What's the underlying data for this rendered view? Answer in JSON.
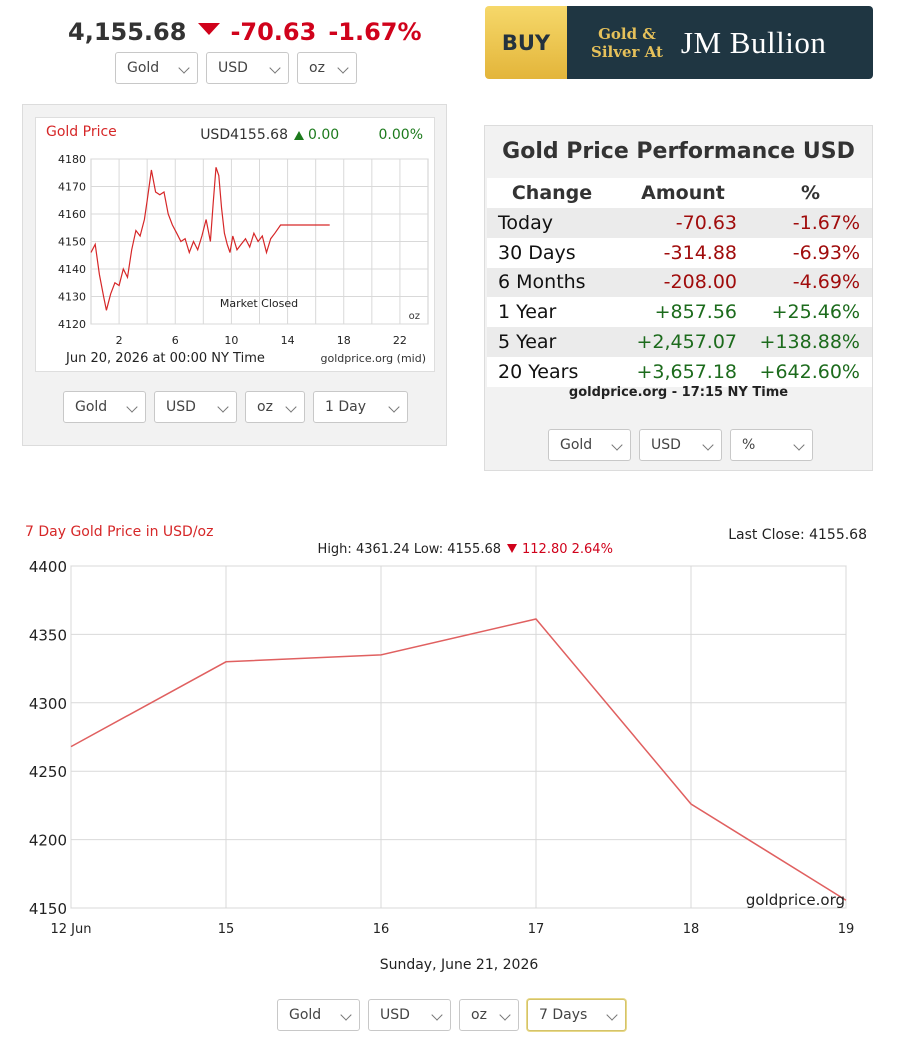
{
  "ticker": {
    "price": "4,155.68",
    "change": "-70.63",
    "change_pct": "-1.67%",
    "direction": "down",
    "selectors": [
      "Gold",
      "USD",
      "oz"
    ]
  },
  "ad": {
    "buy": "BUY",
    "line1": "Gold &",
    "line2": "Silver At",
    "brand": "JM Bullion",
    "colors": {
      "buy_bg": "#f2cc56",
      "brand_bg": "#1f3642",
      "gold_text": "#e6c15a"
    }
  },
  "mini_chart": {
    "title": "Gold Price",
    "quote_currency_price": "USD4155.68",
    "quote_change": "0.00",
    "quote_pct": "0.00%",
    "footer_date": "Jun 20, 2026 at 00:00 NY Time",
    "footer_source": "goldprice.org (mid)",
    "status_label": "Market Closed",
    "unit_label": "oz",
    "selectors": [
      "Gold",
      "USD",
      "oz",
      "1 Day"
    ]
  },
  "performance": {
    "title": "Gold Price Performance USD",
    "headers": [
      "Change",
      "Amount",
      "%"
    ],
    "rows": [
      {
        "label": "Today",
        "amount": "-70.63",
        "pct": "-1.67%",
        "sign": "neg"
      },
      {
        "label": "30 Days",
        "amount": "-314.88",
        "pct": "-6.93%",
        "sign": "neg"
      },
      {
        "label": "6 Months",
        "amount": "-208.00",
        "pct": "-4.69%",
        "sign": "neg"
      },
      {
        "label": "1 Year",
        "amount": "+857.56",
        "pct": "+25.46%",
        "sign": "pos"
      },
      {
        "label": "5 Year",
        "amount": "+2,457.07",
        "pct": "+138.88%",
        "sign": "pos"
      },
      {
        "label": "20 Years",
        "amount": "+3,657.18",
        "pct": "+642.60%",
        "sign": "pos"
      }
    ],
    "source": "goldprice.org - 17:15 NY Time",
    "selectors": [
      "Gold",
      "USD",
      "%"
    ]
  },
  "big_chart": {
    "title": "7 Day Gold Price in USD/oz",
    "last_close_label": "Last Close: 4155.68",
    "summary_prefix": "High: 4361.24 Low: 4155.68",
    "summary_change": "112.80 2.64%",
    "watermark": "goldprice.org",
    "xlabel": "Sunday, June 21, 2026",
    "selectors": [
      "Gold",
      "USD",
      "oz",
      "7 Days"
    ]
  },
  "chart_data": [
    {
      "type": "line",
      "title": "Gold Price",
      "xlabel": "",
      "ylabel": "",
      "xlim": [
        0,
        24
      ],
      "ylim": [
        4120,
        4180
      ],
      "xticks": [
        2,
        6,
        10,
        14,
        18,
        22
      ],
      "yticks": [
        4120,
        4130,
        4140,
        4150,
        4160,
        4170,
        4180
      ],
      "grid": true,
      "series_color": "#d62728",
      "x": [
        0.0,
        0.3,
        0.6,
        0.9,
        1.1,
        1.4,
        1.7,
        2.0,
        2.3,
        2.6,
        2.9,
        3.2,
        3.5,
        3.8,
        4.0,
        4.3,
        4.6,
        4.9,
        5.2,
        5.5,
        5.8,
        6.1,
        6.4,
        6.7,
        7.0,
        7.3,
        7.6,
        7.9,
        8.2,
        8.5,
        8.7,
        8.9,
        9.1,
        9.3,
        9.5,
        9.7,
        9.9,
        10.1,
        10.4,
        10.7,
        11.0,
        11.3,
        11.6,
        11.9,
        12.2,
        12.5,
        12.8,
        13.1,
        13.5,
        14.0,
        15.0,
        16.0,
        17.0
      ],
      "y": [
        4146,
        4149,
        4138,
        4130,
        4125,
        4131,
        4135,
        4134,
        4140,
        4137,
        4147,
        4154,
        4152,
        4158,
        4165,
        4176,
        4168,
        4167,
        4168,
        4160,
        4156,
        4153,
        4150,
        4151,
        4146,
        4150,
        4147,
        4152,
        4158,
        4150,
        4164,
        4177,
        4174,
        4162,
        4153,
        4149,
        4146,
        4152,
        4147,
        4149,
        4151,
        4148,
        4153,
        4150,
        4152,
        4146,
        4151,
        4153,
        4156,
        4156,
        4156,
        4156,
        4156
      ]
    },
    {
      "type": "line",
      "title": "7 Day Gold Price in USD/oz",
      "xlabel": "Sunday, June 21, 2026",
      "ylabel": "",
      "categories": [
        "12 Jun",
        "15",
        "16",
        "17",
        "18",
        "19"
      ],
      "series": [
        {
          "values": [
            4268,
            4330,
            4335,
            4361.24,
            4226,
            4155.68
          ]
        }
      ],
      "ylim": [
        4150,
        4400
      ],
      "yticks": [
        4150,
        4200,
        4250,
        4300,
        4350,
        4400
      ],
      "grid": true,
      "series_color": "#e06060"
    }
  ]
}
